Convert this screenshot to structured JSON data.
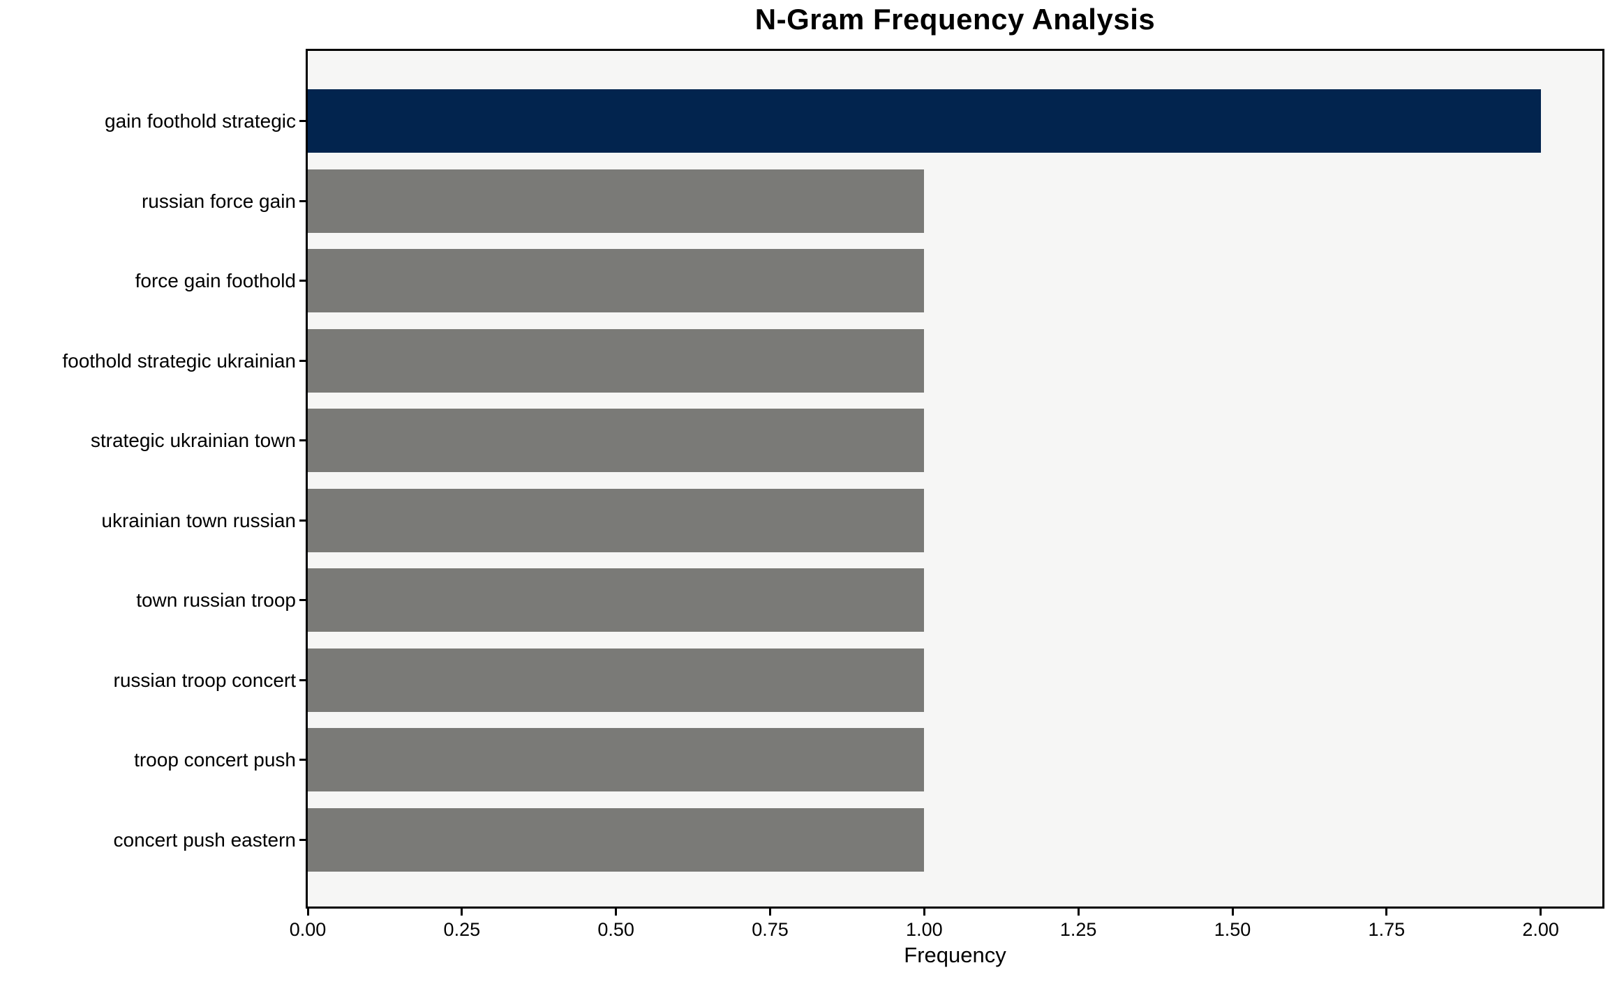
{
  "chart_data": {
    "type": "bar",
    "orientation": "horizontal",
    "title": "N-Gram Frequency Analysis",
    "xlabel": "Frequency",
    "ylabel": "",
    "categories": [
      "gain foothold strategic",
      "russian force gain",
      "force gain foothold",
      "foothold strategic ukrainian",
      "strategic ukrainian town",
      "ukrainian town russian",
      "town russian troop",
      "russian troop concert",
      "troop concert push",
      "concert push eastern"
    ],
    "values": [
      2,
      1,
      1,
      1,
      1,
      1,
      1,
      1,
      1,
      1
    ],
    "xlim": [
      0,
      2.1
    ],
    "xticks": [
      0,
      0.25,
      0.5,
      0.75,
      1.0,
      1.25,
      1.5,
      1.75,
      2.0
    ],
    "xtick_decimals": 2,
    "grid": false,
    "legend": null,
    "highlight_index": 0,
    "colors": {
      "highlight_bar": "#02244e",
      "default_bar": "#7a7a77",
      "plot_background": "#f6f6f5",
      "figure_background": "#ffffff",
      "spine": "#000000",
      "text": "#000000"
    }
  }
}
